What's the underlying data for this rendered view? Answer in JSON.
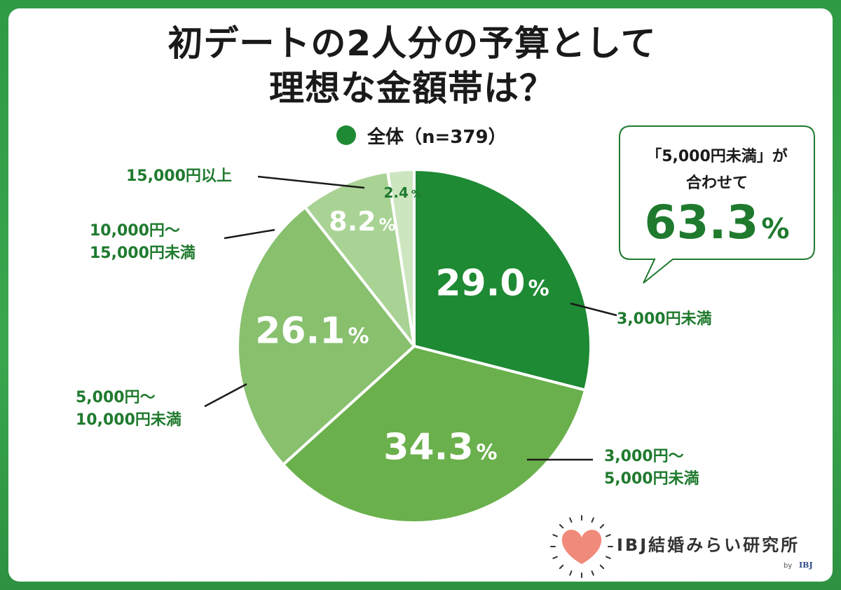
{
  "title_lines": [
    "初デートの2人分の予算として",
    "理想な金額帯は？"
  ],
  "legend": {
    "label": "全体（n=379）",
    "color": "#1e8a34"
  },
  "callout": {
    "line1": "「5,000円未満」が",
    "line2": "合わせて",
    "value": "63.3",
    "unit": "%"
  },
  "brand": {
    "name": "IBJ結婚みらい研究所",
    "by": "by",
    "by_logo": "IBJ",
    "heart_icon": "heart-icon"
  },
  "chart_data": {
    "type": "pie",
    "title": "初デートの2人分の予算として理想な金額帯は？",
    "series_name": "全体（n=379）",
    "unit": "%",
    "slices": [
      {
        "label_lines": [
          "3,000円未満"
        ],
        "value": 29.0,
        "value_text": "29.0",
        "color": "#1e8a34"
      },
      {
        "label_lines": [
          "3,000円～",
          "5,000円未満"
        ],
        "value": 34.3,
        "value_text": "34.3",
        "color": "#6ab04c"
      },
      {
        "label_lines": [
          "5,000円～",
          "10,000円未満"
        ],
        "value": 26.1,
        "value_text": "26.1",
        "color": "#88c06e"
      },
      {
        "label_lines": [
          "10,000円～",
          "15,000円未満"
        ],
        "value": 8.2,
        "value_text": "8.2",
        "color": "#a9d394"
      },
      {
        "label_lines": [
          "15,000円以上"
        ],
        "value": 2.4,
        "value_text": "2.4",
        "color": "#cde6c0"
      }
    ]
  }
}
